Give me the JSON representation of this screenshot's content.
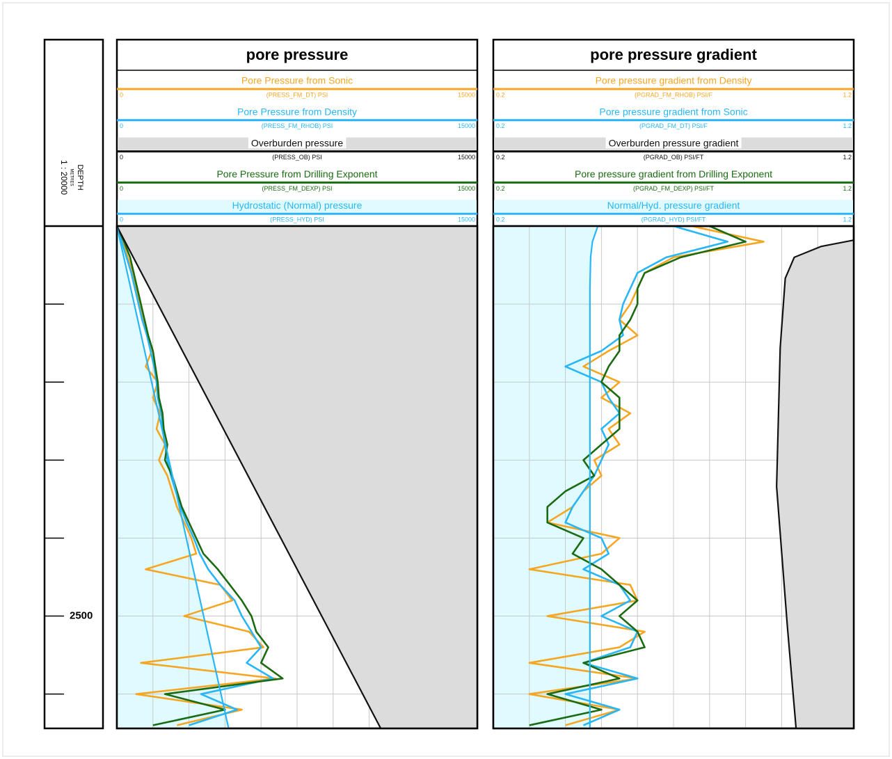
{
  "depth_track": {
    "title": "DEPTH",
    "unit": "METRES",
    "scale": "1 : 20000",
    "ylim": [
      0,
      3220
    ],
    "yticks": [
      {
        "value": 500,
        "label": null
      },
      {
        "value": 1000,
        "label": null
      },
      {
        "value": 1500,
        "label": null
      },
      {
        "value": 2000,
        "label": null
      },
      2500,
      {
        "value": 3000,
        "label": null
      }
    ]
  },
  "chart_data": [
    {
      "type": "log-track",
      "title": "pore pressure",
      "depth": [
        0,
        100,
        200,
        300,
        400,
        500,
        600,
        700,
        800,
        900,
        1000,
        1100,
        1200,
        1300,
        1400,
        1500,
        1600,
        1700,
        1800,
        1900,
        2000,
        2100,
        2200,
        2300,
        2400,
        2500,
        2600,
        2700,
        2800,
        2900,
        3000,
        3100,
        3200
      ],
      "xgrid": [
        1500,
        3000,
        4500,
        6000,
        7500,
        9000,
        10500,
        12000,
        13500
      ],
      "series": [
        {
          "name": "Pore Pressure from Sonic",
          "mnemonic": "(PRESS_FM_DT) PSI",
          "color": "#f5a623",
          "xlim": [
            0,
            15000
          ],
          "values": [
            0,
            250,
            450,
            650,
            800,
            950,
            1100,
            1300,
            1450,
            1200,
            1700,
            1500,
            1800,
            1650,
            2000,
            1750,
            2100,
            2300,
            2500,
            2800,
            3100,
            3300,
            1200,
            4300,
            4800,
            2800,
            5500,
            6100,
            1000,
            6600,
            800,
            5200,
            2500
          ]
        },
        {
          "name": "Pore Pressure from Density",
          "mnemonic": "(PRESS_FM_RHOB) PSI",
          "color": "#29b6f6",
          "xlim": [
            0,
            15000
          ],
          "values": [
            0,
            200,
            400,
            600,
            750,
            900,
            1050,
            1250,
            1400,
            1550,
            1650,
            1700,
            1850,
            1900,
            2000,
            2100,
            2250,
            2450,
            2650,
            2900,
            3200,
            3450,
            3800,
            4300,
            4900,
            5200,
            5600,
            6000,
            5400,
            6500,
            3500,
            5000,
            3000
          ]
        },
        {
          "name": "Overburden pressure",
          "mnemonic": "(PRESS_OB) PSI",
          "color": "#111111",
          "xlim": [
            0,
            15000
          ],
          "header_bg": "#dcdcdc",
          "fill": "right",
          "fill_color": "#dcdcdc",
          "depth": [
            0,
            3220
          ],
          "values": [
            0,
            10980
          ]
        },
        {
          "name": "Pore Pressure from Drilling Exponent",
          "mnemonic": "(PRESS_FM_DEXP) PSI",
          "color": "#1a6b12",
          "xlim": [
            0,
            15000
          ],
          "values": [
            0,
            300,
            550,
            700,
            850,
            1000,
            1150,
            1300,
            1500,
            1600,
            1700,
            1750,
            1900,
            1950,
            2100,
            2000,
            2300,
            2500,
            2700,
            3000,
            3300,
            3600,
            4200,
            4700,
            5200,
            5600,
            5800,
            6300,
            6000,
            6900,
            2000,
            4500,
            1500
          ]
        },
        {
          "name": "Hydrostatic (Normal) pressure",
          "mnemonic": "(PRESS_HYD) PSI",
          "color": "#29b6f6",
          "xlim": [
            0,
            15000
          ],
          "header_bg": "#e0fbff",
          "fill": "left",
          "fill_color": "#e0fbff",
          "depth": [
            0,
            3220
          ],
          "values": [
            0,
            4650
          ]
        }
      ]
    },
    {
      "type": "log-track",
      "title": "pore pressure gradient",
      "depth": [
        0,
        100,
        200,
        300,
        400,
        500,
        600,
        700,
        800,
        900,
        1000,
        1100,
        1200,
        1300,
        1400,
        1500,
        1600,
        1700,
        1800,
        1900,
        2000,
        2100,
        2200,
        2300,
        2400,
        2500,
        2600,
        2700,
        2800,
        2900,
        3000,
        3100,
        3200
      ],
      "xgrid": [
        0.3,
        0.4,
        0.5,
        0.6,
        0.7,
        0.8,
        0.9,
        1.0,
        1.1
      ],
      "series": [
        {
          "name": "Pore pressure gradient from Density",
          "mnemonic": "(PGRAD_FM_RHOB) PSI/F",
          "color": "#f5a623",
          "xlim": [
            0.2,
            1.2
          ],
          "values": [
            0.75,
            0.95,
            0.7,
            0.62,
            0.6,
            0.58,
            0.55,
            0.6,
            0.52,
            0.45,
            0.55,
            0.5,
            0.58,
            0.52,
            0.55,
            0.48,
            0.5,
            0.45,
            0.42,
            0.35,
            0.55,
            0.5,
            0.3,
            0.58,
            0.6,
            0.35,
            0.62,
            0.55,
            0.3,
            0.6,
            0.3,
            0.55,
            0.4
          ]
        },
        {
          "name": "Pore pressure gradient from Sonic",
          "mnemonic": "(PGRAD_FM_DT) PSI/F",
          "color": "#29b6f6",
          "xlim": [
            0.2,
            1.2
          ],
          "values": [
            0.7,
            0.85,
            0.68,
            0.6,
            0.58,
            0.56,
            0.55,
            0.56,
            0.5,
            0.4,
            0.5,
            0.52,
            0.55,
            0.5,
            0.52,
            0.5,
            0.48,
            0.45,
            0.42,
            0.4,
            0.5,
            0.52,
            0.45,
            0.55,
            0.58,
            0.5,
            0.6,
            0.58,
            0.45,
            0.6,
            0.4,
            0.55,
            0.45
          ]
        },
        {
          "name": "Overburden pressure gradient",
          "mnemonic": "(PGRAD_OB) PSI/FT",
          "color": "#111111",
          "xlim": [
            0.2,
            1.2
          ],
          "header_bg": "#dcdcdc",
          "fill": "right",
          "fill_color": "#dcdcdc",
          "depth": [
            90,
            130,
            200,
            335,
            780,
            1670,
            2570,
            3220
          ],
          "values": [
            1.2,
            1.11,
            1.035,
            1.01,
            0.996,
            0.986,
            1.016,
            1.04
          ]
        },
        {
          "name": "Pore pressure gradient from Drilling Exponent",
          "mnemonic": "(PGRAD_FM_DEXP) PSI/FT",
          "color": "#1a6b12",
          "xlim": [
            0.2,
            1.2
          ],
          "values": [
            0.8,
            0.9,
            0.72,
            0.62,
            0.6,
            0.6,
            0.58,
            0.55,
            0.55,
            0.52,
            0.5,
            0.55,
            0.55,
            0.55,
            0.5,
            0.45,
            0.48,
            0.4,
            0.35,
            0.35,
            0.45,
            0.42,
            0.5,
            0.55,
            0.6,
            0.55,
            0.6,
            0.62,
            0.45,
            0.55,
            0.35,
            0.5,
            0.3
          ]
        },
        {
          "name": "Normal/Hyd. pressure gradient",
          "mnemonic": "(PGRAD_HYD) PSI/FT",
          "color": "#29b6f6",
          "xlim": [
            0.2,
            1.2
          ],
          "header_bg": "#e0fbff",
          "fill": "left",
          "fill_color": "#e0fbff",
          "depth": [
            0,
            100,
            200,
            400,
            3220
          ],
          "values": [
            0.49,
            0.475,
            0.47,
            0.468,
            0.468
          ]
        }
      ]
    }
  ]
}
